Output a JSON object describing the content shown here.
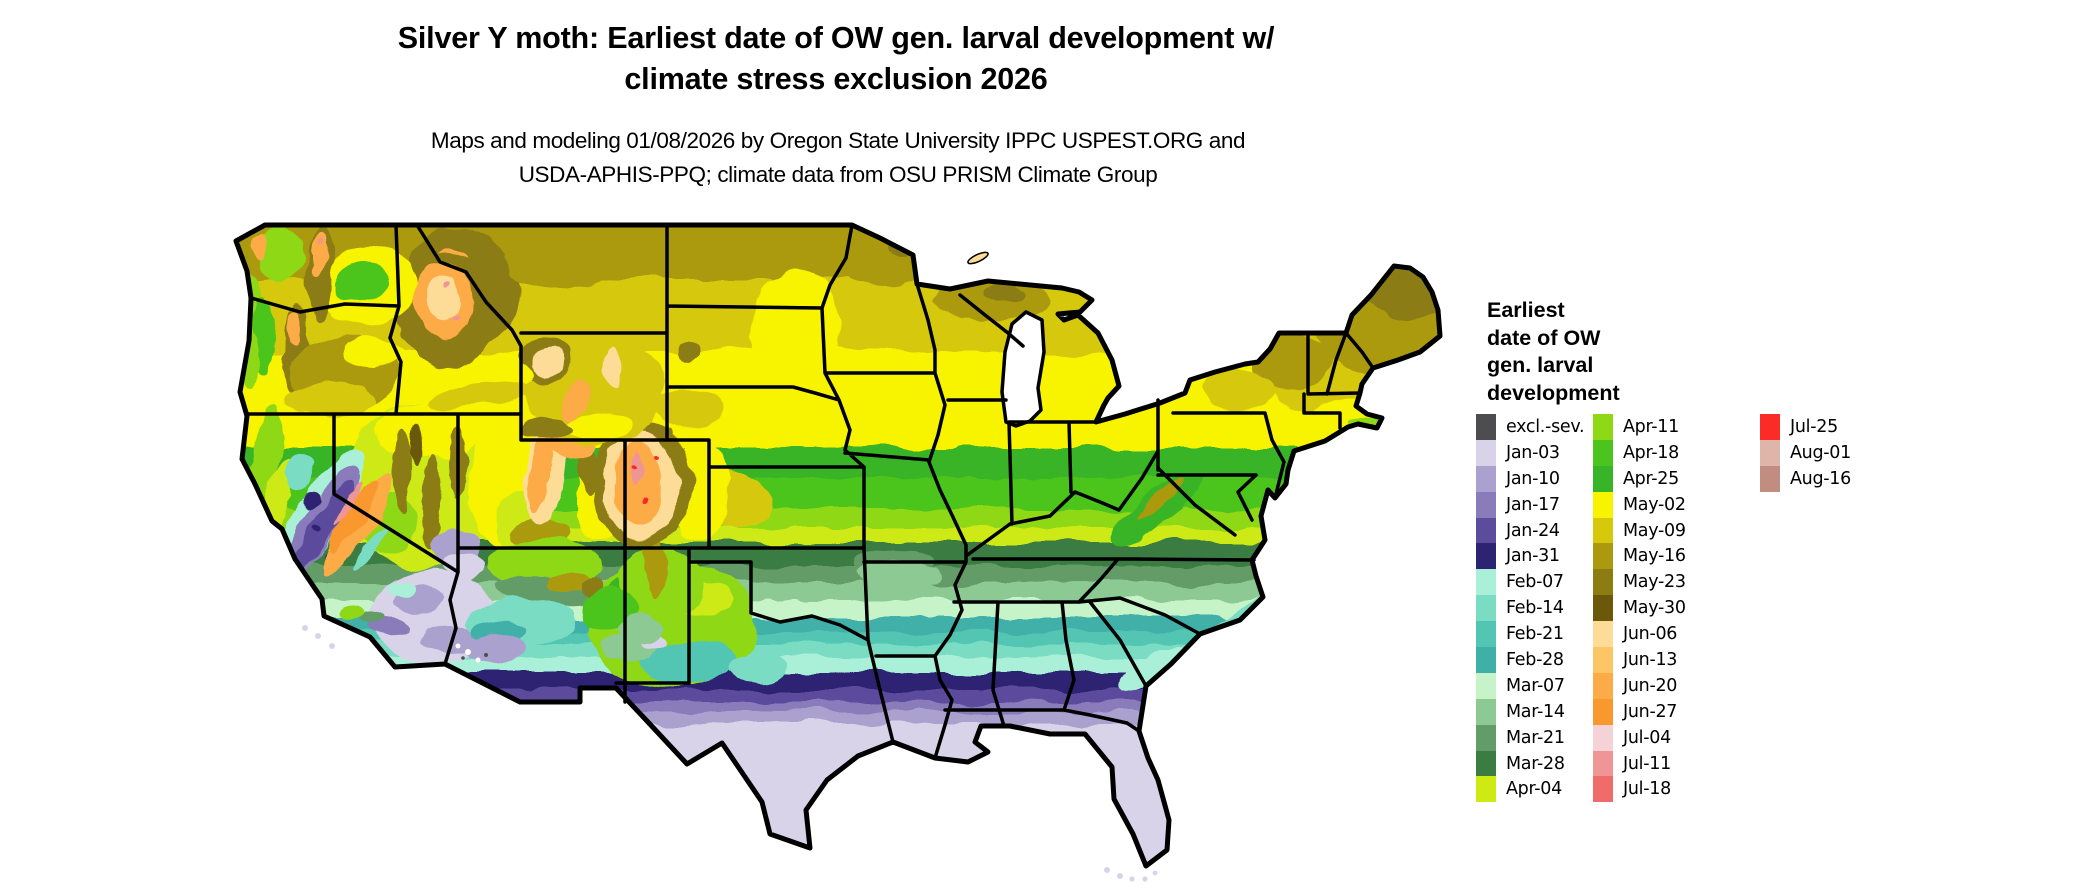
{
  "title": {
    "line1": "Silver Y moth: Earliest date of OW gen. larval development w/",
    "line2": "climate stress exclusion 2026"
  },
  "subtitle": {
    "line1": "Maps and modeling 01/08/2026 by Oregon State University IPPC USPEST.ORG and",
    "line2": "USDA-APHIS-PPQ; climate data from OSU PRISM Climate Group"
  },
  "legend": {
    "title_lines": [
      "Earliest",
      "date of OW",
      "gen. larval",
      "development"
    ],
    "columns": [
      {
        "entries": [
          {
            "label": "excl.-sev.",
            "color": "#4d4d4f"
          },
          {
            "label": "Jan-03",
            "color": "#d9d3ea"
          },
          {
            "label": "Jan-10",
            "color": "#aaa1ce"
          },
          {
            "label": "Jan-17",
            "color": "#8a7cba"
          },
          {
            "label": "Jan-24",
            "color": "#5c4c9c"
          },
          {
            "label": "Jan-31",
            "color": "#2e2272"
          },
          {
            "label": "Feb-07",
            "color": "#aaf0d9"
          },
          {
            "label": "Feb-14",
            "color": "#7adcc3"
          },
          {
            "label": "Feb-21",
            "color": "#52c6b3"
          },
          {
            "label": "Feb-28",
            "color": "#3fb0a8"
          },
          {
            "label": "Mar-07",
            "color": "#c6f4c8"
          },
          {
            "label": "Mar-14",
            "color": "#8cc993"
          },
          {
            "label": "Mar-21",
            "color": "#639c66"
          },
          {
            "label": "Mar-28",
            "color": "#3a7c42"
          },
          {
            "label": "Apr-04",
            "color": "#cdea12"
          }
        ]
      },
      {
        "entries": [
          {
            "label": "Apr-11",
            "color": "#8ed816"
          },
          {
            "label": "Apr-18",
            "color": "#4cc41e"
          },
          {
            "label": "Apr-25",
            "color": "#37b428"
          },
          {
            "label": "May-02",
            "color": "#f8f400"
          },
          {
            "label": "May-09",
            "color": "#d6c90b"
          },
          {
            "label": "May-16",
            "color": "#ab9a10"
          },
          {
            "label": "May-23",
            "color": "#8c7c12"
          },
          {
            "label": "May-30",
            "color": "#6b580a"
          },
          {
            "label": "Jun-06",
            "color": "#fcdc96"
          },
          {
            "label": "Jun-13",
            "color": "#fcc566"
          },
          {
            "label": "Jun-20",
            "color": "#fcab46"
          },
          {
            "label": "Jun-27",
            "color": "#f8982f"
          },
          {
            "label": "Jul-04",
            "color": "#f5d2d6"
          },
          {
            "label": "Jul-11",
            "color": "#f09595"
          },
          {
            "label": "Jul-18",
            "color": "#ef6c6b"
          }
        ]
      },
      {
        "entries": [
          {
            "label": "Jul-25",
            "color": "#fb2b27"
          },
          {
            "label": "Aug-01",
            "color": "#dfb4a9"
          },
          {
            "label": "Aug-16",
            "color": "#c08d80"
          }
        ]
      }
    ]
  },
  "map": {
    "border_color": "#000000",
    "background": "#ffffff"
  }
}
